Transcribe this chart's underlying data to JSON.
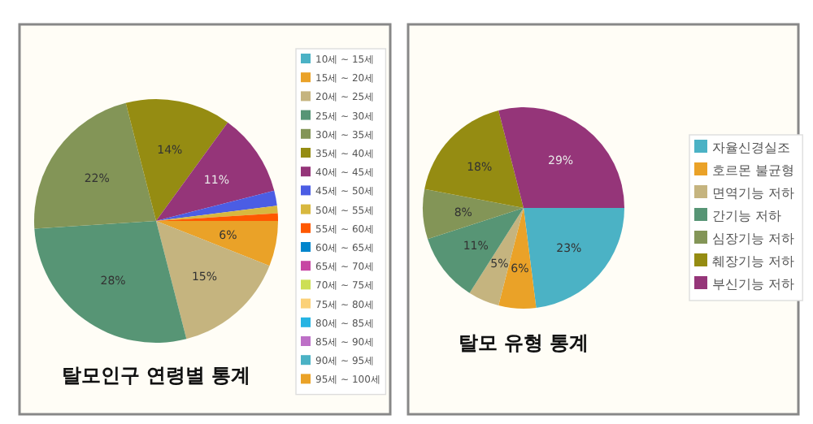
{
  "chart_data": [
    {
      "type": "pie",
      "title": "탈모인구 연령별 통계",
      "legend": "right",
      "categories": [
        "10세 ~ 15세",
        "15세 ~ 20세",
        "20세 ~ 25세",
        "25세 ~ 30세",
        "30세 ~ 35세",
        "35세 ~ 40세",
        "40세 ~ 45세",
        "45세 ~ 50세",
        "50세 ~ 55세",
        "55세 ~ 60세",
        "60세 ~ 65세",
        "65세 ~ 70세",
        "70세 ~ 75세",
        "75세 ~ 80세",
        "80세 ~ 85세",
        "85세 ~ 90세",
        "90세 ~ 95세",
        "95세 ~ 100세"
      ],
      "values": [
        0,
        6,
        15,
        28,
        22,
        14,
        11,
        2,
        1,
        1,
        0,
        0,
        0,
        0,
        0,
        0,
        0,
        0
      ],
      "value_labels": [
        null,
        "6%",
        "15%",
        "28%",
        "22%",
        "14%",
        "11%",
        null,
        null,
        null,
        null,
        null,
        null,
        null,
        null,
        null,
        null,
        null
      ],
      "colors": [
        "#4bb2c5",
        "#eaa228",
        "#c5b47f",
        "#579575",
        "#839557",
        "#958c12",
        "#953579",
        "#4b5de4",
        "#d8b83f",
        "#ff5800",
        "#0085cc",
        "#c747a3",
        "#cddf54",
        "#fbd178",
        "#26b4e3",
        "#bd70c7",
        "#4bb2c5",
        "#eaa228"
      ]
    },
    {
      "type": "pie",
      "title": "탈모 유형 통계",
      "legend": "right",
      "categories": [
        "자율신경실조",
        "호르몬 불균형",
        "면역기능 저하",
        "간기능 저하",
        "심장기능 저하",
        "췌장기능 저하",
        "부신기능 저하"
      ],
      "values": [
        23,
        6,
        5,
        11,
        8,
        18,
        29
      ],
      "value_labels": [
        "23%",
        "6%",
        "5%",
        "11%",
        "8%",
        "18%",
        "29%"
      ],
      "colors": [
        "#4bb2c5",
        "#eaa228",
        "#c5b47f",
        "#579575",
        "#839557",
        "#958c12",
        "#953579"
      ]
    }
  ]
}
